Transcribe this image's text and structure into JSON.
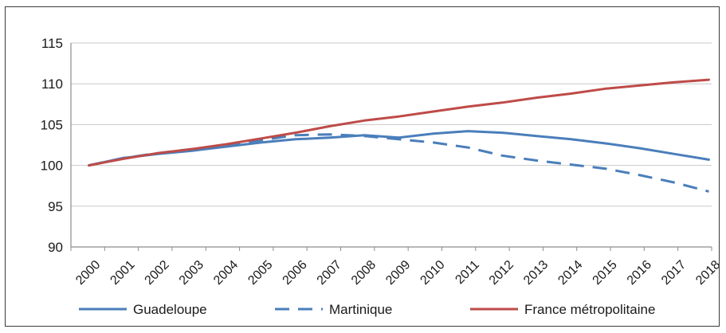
{
  "chart_data": {
    "type": "line",
    "title": "",
    "xlabel": "",
    "ylabel": "",
    "ylim": [
      90,
      115
    ],
    "yticks": [
      90,
      95,
      100,
      105,
      110,
      115
    ],
    "grid": "horizontal",
    "legend_placement": "bottom",
    "x": [
      "2000",
      "2001",
      "2002",
      "2003",
      "2004",
      "2005",
      "2006",
      "2007",
      "2008",
      "2009",
      "2010",
      "2011",
      "2012",
      "2013",
      "2014",
      "2015",
      "2016",
      "2017",
      "2018"
    ],
    "series": [
      {
        "name": "Guadeloupe",
        "color": "#4a7ebb",
        "dash": "solid",
        "values": [
          100.0,
          100.9,
          101.4,
          101.8,
          102.3,
          102.8,
          103.2,
          103.4,
          103.7,
          103.4,
          103.9,
          104.2,
          104.0,
          103.6,
          103.2,
          102.7,
          102.1,
          101.4,
          100.7
        ]
      },
      {
        "name": "Martinique",
        "color": "#4a7ebb",
        "dash": "dashed",
        "values": [
          100.0,
          100.9,
          101.5,
          102.0,
          102.5,
          103.1,
          103.7,
          103.8,
          103.6,
          103.2,
          102.8,
          102.2,
          101.2,
          100.6,
          100.1,
          99.6,
          98.8,
          97.9,
          96.8
        ]
      },
      {
        "name": "France métropolitaine",
        "color": "#be4b48",
        "dash": "solid",
        "values": [
          100.0,
          100.8,
          101.5,
          102.0,
          102.6,
          103.3,
          104.0,
          104.8,
          105.5,
          106.0,
          106.6,
          107.2,
          107.7,
          108.3,
          108.8,
          109.4,
          109.8,
          110.2,
          110.5
        ]
      }
    ]
  }
}
